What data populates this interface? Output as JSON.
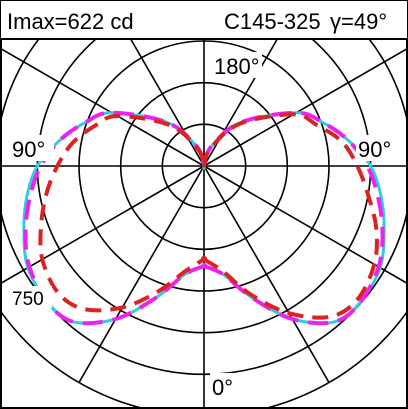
{
  "header": {
    "imax_label": "Imax=622 cd",
    "plane_label": "C145-325",
    "gamma_label": "γ=49°"
  },
  "chart_data": {
    "type": "polar",
    "title": "",
    "r_max": 750,
    "ring_step": 125,
    "angle_step_deg": 30,
    "radial_unit": "cd",
    "grid": true,
    "tick_labels": {
      "top": "180°",
      "left": "90°",
      "right": "90°",
      "bottom": "0°",
      "radial": "750"
    },
    "colors": {
      "grid": "#000000",
      "series_cyan": "#33CCDD",
      "series_magenta": "#EE22EE",
      "series_red": "#DD2222"
    },
    "series": [
      {
        "style": "solid",
        "color": "#33CCDD",
        "gamma_deg": [
          0,
          10,
          20,
          30,
          40,
          49,
          60,
          70,
          80,
          90,
          100,
          110,
          120,
          140,
          160,
          180
        ],
        "left_cd": [
          300,
          330,
          420,
          530,
          610,
          622,
          610,
          575,
          540,
          500,
          440,
          380,
          320,
          170,
          60,
          0
        ],
        "right_cd": [
          300,
          330,
          420,
          530,
          610,
          622,
          610,
          575,
          540,
          500,
          440,
          380,
          320,
          170,
          60,
          0
        ]
      },
      {
        "style": "dashed",
        "color": "#EE22EE",
        "gamma_deg": [
          0,
          10,
          20,
          30,
          40,
          49,
          60,
          70,
          80,
          90,
          100,
          110,
          120,
          140,
          160,
          180
        ],
        "left_cd": [
          300,
          330,
          420,
          530,
          610,
          622,
          605,
          570,
          530,
          490,
          440,
          380,
          320,
          170,
          60,
          0
        ],
        "right_cd": [
          300,
          330,
          420,
          530,
          610,
          622,
          605,
          570,
          530,
          490,
          440,
          380,
          320,
          170,
          60,
          0
        ]
      },
      {
        "style": "dashed",
        "color": "#DD2222",
        "gamma_deg": [
          0,
          10,
          20,
          30,
          40,
          49,
          60,
          70,
          80,
          90,
          100,
          110,
          120,
          140,
          160,
          180
        ],
        "left_cd": [
          280,
          320,
          400,
          490,
          560,
          580,
          560,
          520,
          480,
          440,
          400,
          350,
          300,
          160,
          55,
          0
        ],
        "right_cd": [
          280,
          320,
          410,
          510,
          590,
          610,
          590,
          550,
          500,
          460,
          420,
          360,
          310,
          165,
          55,
          0
        ]
      }
    ]
  }
}
